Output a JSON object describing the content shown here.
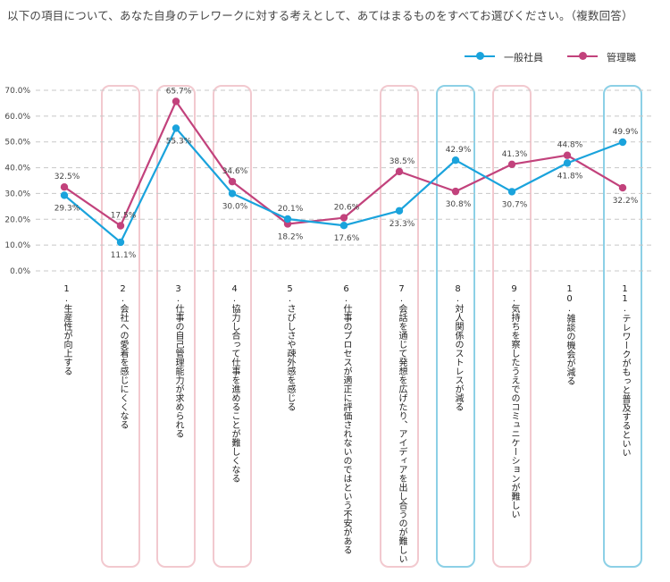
{
  "title": "以下の項目について、あなた自身のテレワークに対する考えとして、あてはまるものをすべてお選びください。（複数回答）",
  "colors": {
    "general": "#1aa3dc",
    "manager": "#c2427c",
    "highlight_pink": "#f2c9cf",
    "highlight_blue": "#8cd0e6",
    "grid": "#c8c8c8"
  },
  "chart_data": {
    "type": "line",
    "title": "以下の項目について、あなた自身のテレワークに対する考えとして、あてはまるものをすべてお選びください。（複数回答）",
    "xlabel": "",
    "ylabel": "",
    "ylim": [
      0,
      70
    ],
    "y_ticks": [
      "0.0%",
      "10.0%",
      "20.0%",
      "30.0%",
      "40.0%",
      "50.0%",
      "60.0%",
      "70.0%"
    ],
    "grid": true,
    "legend_position": "top-right",
    "categories": [
      "1.生産性が向上する",
      "2.会社への愛着を感じにくくなる",
      "3.仕事の自己管理能力が求められる",
      "4.協力し合って仕事を進めることが難しくなる",
      "5.さびしさや疎外感を感じる",
      "6.仕事のプロセスが適正に評価されないのではという不安がある",
      "7.会話を通じて発想を広げたり、アイディアを出し合うのが難しい",
      "8.対人関係のストレスが減る",
      "9.気持ちを察したうえでのコミュニケーションが難しい",
      "10.雑談の機会が減る",
      "11.テレワークがもっと普及するといい"
    ],
    "series": [
      {
        "name": "一般社員",
        "color": "#1aa3dc",
        "values": [
          29.3,
          11.1,
          55.3,
          30.0,
          20.1,
          17.6,
          23.3,
          42.9,
          30.7,
          41.8,
          49.9
        ],
        "labels": [
          "29.3%",
          "11.1%",
          "55.3%",
          "30.0%",
          "20.1%",
          "17.6%",
          "23.3%",
          "42.9%",
          "30.7%",
          "41.8%",
          "49.9%"
        ]
      },
      {
        "name": "管理職",
        "color": "#c2427c",
        "values": [
          32.5,
          17.5,
          65.7,
          34.6,
          18.2,
          20.6,
          38.5,
          30.8,
          41.3,
          44.8,
          32.2
        ],
        "labels": [
          "32.5%",
          "17.5%",
          "65.7%",
          "34.6%",
          "18.2%",
          "20.6%",
          "38.5%",
          "30.8%",
          "41.3%",
          "44.8%",
          "32.2%"
        ]
      }
    ],
    "highlights": [
      {
        "index": 1,
        "color": "pink"
      },
      {
        "index": 2,
        "color": "pink"
      },
      {
        "index": 3,
        "color": "pink"
      },
      {
        "index": 6,
        "color": "pink"
      },
      {
        "index": 7,
        "color": "blue"
      },
      {
        "index": 8,
        "color": "pink"
      },
      {
        "index": 10,
        "color": "blue"
      }
    ]
  }
}
